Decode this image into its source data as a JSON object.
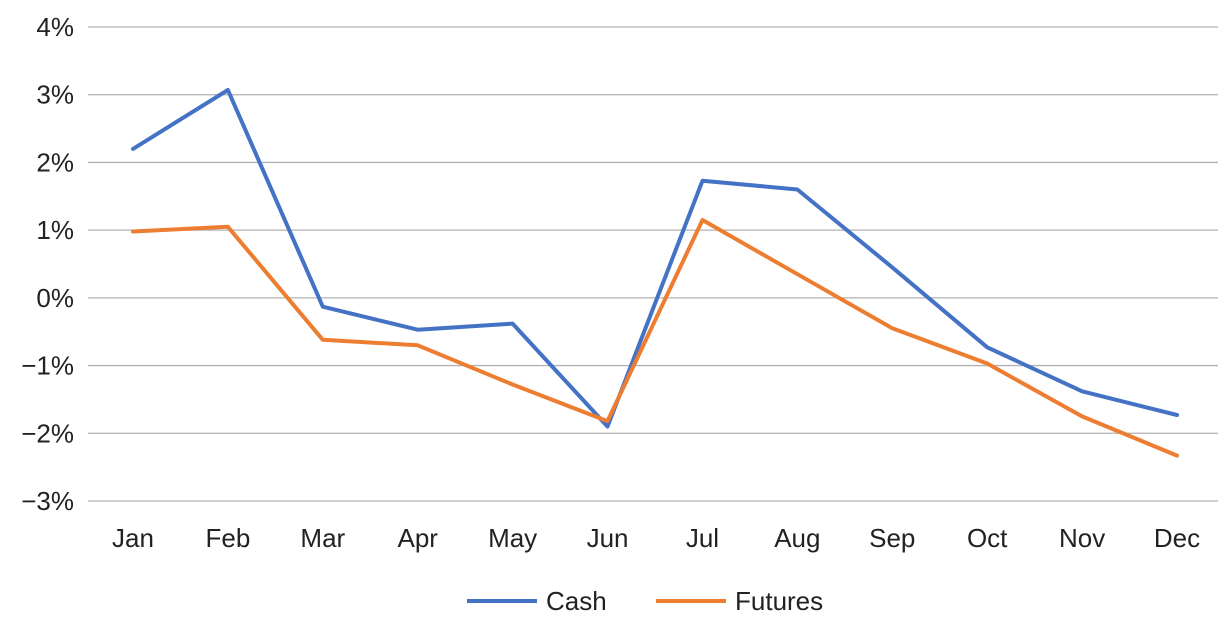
{
  "chart_data": {
    "type": "line",
    "categories": [
      "Jan",
      "Feb",
      "Mar",
      "Apr",
      "May",
      "Jun",
      "Jul",
      "Aug",
      "Sep",
      "Oct",
      "Nov",
      "Dec"
    ],
    "series": [
      {
        "name": "Cash",
        "color": "#4472C4",
        "values": [
          2.2,
          3.07,
          -0.13,
          -0.47,
          -0.38,
          -1.9,
          1.73,
          1.6,
          0.45,
          -0.73,
          -1.38,
          -1.73
        ]
      },
      {
        "name": "Futures",
        "color": "#ED7D31",
        "values": [
          0.98,
          1.05,
          -0.62,
          -0.7,
          -1.28,
          -1.82,
          1.15,
          0.35,
          -0.45,
          -0.97,
          -1.75,
          -2.33
        ]
      }
    ],
    "y_ticks": [
      "4%",
      "3%",
      "2%",
      "1%",
      "0%",
      "−1%",
      "−2%",
      "−3%"
    ],
    "y_tick_values": [
      4,
      3,
      2,
      1,
      0,
      -1,
      -2,
      -3
    ],
    "ylim": [
      -3,
      4
    ],
    "grid": true,
    "legend_position": "bottom"
  }
}
